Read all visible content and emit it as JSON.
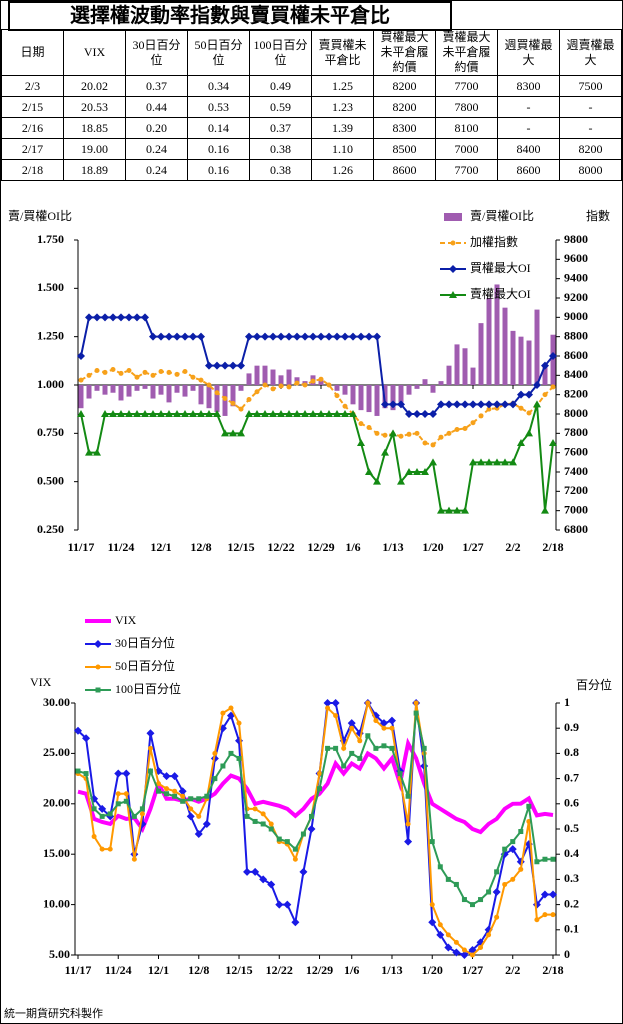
{
  "title": "選擇權波動率指數與賣買權未平倉比",
  "table": {
    "header": [
      "日期",
      "VIX",
      "30日百分位",
      "50日百分位",
      "100日百分位",
      "賣買權未平倉比",
      "買權最大未平倉履約價",
      "賣權最大未平倉履約價",
      "週買權最大",
      "週賣權最大"
    ],
    "rows": [
      [
        "2/3",
        "20.02",
        "0.37",
        "0.34",
        "0.49",
        "1.25",
        "8200",
        "7700",
        "8300",
        "7500"
      ],
      [
        "2/15",
        "20.53",
        "0.44",
        "0.53",
        "0.59",
        "1.23",
        "8200",
        "7800",
        "-",
        "-"
      ],
      [
        "2/16",
        "18.85",
        "0.20",
        "0.14",
        "0.37",
        "1.39",
        "8300",
        "8100",
        "-",
        "-"
      ],
      [
        "2/17",
        "19.00",
        "0.24",
        "0.16",
        "0.38",
        "1.10",
        "8500",
        "7000",
        "8400",
        "8200"
      ],
      [
        "2/18",
        "18.89",
        "0.24",
        "0.16",
        "0.38",
        "1.26",
        "8600",
        "7700",
        "8600",
        "8000"
      ]
    ]
  },
  "chart_data": [
    {
      "type": "combo",
      "y_label": "賣/買權OI比",
      "y2_label": "指數",
      "legend": "upper right",
      "grid": false,
      "x_axis_at": 1,
      "categories": [
        "11/17",
        null,
        null,
        null,
        null,
        "11/24",
        null,
        null,
        null,
        null,
        "12/1",
        null,
        null,
        null,
        null,
        "12/8",
        null,
        null,
        null,
        null,
        "12/15",
        null,
        null,
        null,
        null,
        "12/22",
        null,
        null,
        null,
        null,
        "12/29",
        null,
        null,
        null,
        "1/6",
        null,
        null,
        null,
        null,
        "1/13",
        null,
        null,
        null,
        null,
        "1/20",
        null,
        null,
        null,
        null,
        "1/27",
        null,
        null,
        null,
        null,
        "2/2",
        null,
        null,
        null,
        null,
        "2/18"
      ],
      "ylim": [
        0.25,
        1.75
      ],
      "yticks": [
        {
          "value": 0.25,
          "label": "0.250"
        },
        {
          "value": 0.5,
          "label": "0.500"
        },
        {
          "value": 0.75,
          "label": "0.750"
        },
        {
          "value": 1,
          "label": "1.000"
        },
        {
          "value": 1.25,
          "label": "1.250"
        },
        {
          "value": 1.5,
          "label": "1.500"
        },
        {
          "value": 1.75,
          "label": "1.750"
        }
      ],
      "y2lim": [
        6800,
        9800
      ],
      "y2ticks": [
        6800,
        7000,
        7200,
        7400,
        7600,
        7800,
        8000,
        8200,
        8400,
        8600,
        8800,
        9000,
        9200,
        9400,
        9600,
        9800
      ],
      "series": [
        {
          "name": "賣/買權OI比",
          "type": "bar",
          "axis": "y",
          "color": "#a05cb0",
          "values": [
            0.88,
            0.93,
            0.97,
            0.95,
            0.96,
            0.92,
            0.94,
            0.97,
            0.98,
            0.93,
            0.95,
            0.91,
            0.96,
            0.94,
            0.97,
            0.9,
            0.88,
            0.86,
            0.84,
            0.89,
            0.97,
            1.06,
            1.1,
            1.1,
            1.08,
            1.05,
            1.08,
            1.04,
            1.02,
            1.05,
            1.03,
            1,
            0.97,
            0.95,
            0.9,
            0.87,
            0.86,
            0.84,
            0.88,
            0.87,
            0.91,
            0.95,
            0.98,
            1.03,
            0.96,
            1.02,
            1.1,
            1.21,
            1.19,
            1.09,
            1.32,
            1.45,
            1.52,
            1.4,
            1.28,
            1.25,
            1.23,
            1.39,
            1.1,
            1.26
          ]
        },
        {
          "name": "加權指數",
          "type": "line",
          "axis": "y2",
          "color": "#f7a11a",
          "dash": true,
          "marker": "circle",
          "values": [
            8350,
            8400,
            8450,
            8430,
            8460,
            8420,
            8450,
            8380,
            8430,
            8400,
            8440,
            8430,
            8410,
            8440,
            8380,
            8350,
            8300,
            8220,
            8160,
            8110,
            8050,
            8150,
            8230,
            8300,
            8260,
            8290,
            8280,
            8320,
            8300,
            8340,
            8360,
            8300,
            8190,
            8080,
            8000,
            7900,
            7860,
            7800,
            7780,
            7790,
            7770,
            7790,
            7800,
            7700,
            7680,
            7760,
            7800,
            7840,
            7850,
            7910,
            7980,
            8050,
            8060,
            8100,
            8110,
            8060,
            8010,
            8090,
            8200,
            8280
          ]
        },
        {
          "name": "買權最大OI",
          "type": "line",
          "axis": "y2",
          "color": "#0b1fa8",
          "marker": "diamond",
          "values": [
            8600,
            9000,
            9000,
            9000,
            9000,
            9000,
            9000,
            9000,
            9000,
            8800,
            8800,
            8800,
            8800,
            8800,
            8800,
            8800,
            8500,
            8500,
            8500,
            8500,
            8500,
            8800,
            8800,
            8800,
            8800,
            8800,
            8800,
            8800,
            8800,
            8800,
            8800,
            8800,
            8800,
            8800,
            8800,
            8800,
            8800,
            8800,
            8100,
            8100,
            8100,
            8000,
            8000,
            8000,
            8000,
            8100,
            8100,
            8100,
            8100,
            8100,
            8100,
            8100,
            8100,
            8100,
            8100,
            8200,
            8200,
            8300,
            8500,
            8600
          ]
        },
        {
          "name": "賣權最大OI",
          "type": "line",
          "axis": "y2",
          "color": "#138a13",
          "marker": "triangle",
          "values": [
            8000,
            7600,
            7600,
            8000,
            8000,
            8000,
            8000,
            8000,
            8000,
            8000,
            8000,
            8000,
            8000,
            8000,
            8000,
            8000,
            8000,
            8000,
            7800,
            7800,
            7800,
            8000,
            8000,
            8000,
            8000,
            8000,
            8000,
            8000,
            8000,
            8000,
            8000,
            8000,
            8000,
            8000,
            8000,
            7700,
            7400,
            7300,
            7600,
            7800,
            7300,
            7400,
            7400,
            7400,
            7500,
            7000,
            7000,
            7000,
            7000,
            7500,
            7500,
            7500,
            7500,
            7500,
            7500,
            7700,
            7800,
            8100,
            7000,
            7700
          ]
        }
      ]
    },
    {
      "type": "line",
      "y_label": "VIX",
      "y2_label": "百分位",
      "legend": "upper left",
      "grid": false,
      "categories": [
        "11/17",
        null,
        null,
        null,
        null,
        "11/24",
        null,
        null,
        null,
        null,
        "12/1",
        null,
        null,
        null,
        null,
        "12/8",
        null,
        null,
        null,
        null,
        "12/15",
        null,
        null,
        null,
        null,
        "12/22",
        null,
        null,
        null,
        null,
        "12/29",
        null,
        null,
        null,
        "1/6",
        null,
        null,
        null,
        null,
        "1/13",
        null,
        null,
        null,
        null,
        "1/20",
        null,
        null,
        null,
        null,
        "1/27",
        null,
        null,
        null,
        null,
        "2/2",
        null,
        null,
        null,
        null,
        "2/18"
      ],
      "ylim": [
        5,
        30
      ],
      "yticks": [
        {
          "value": 5,
          "label": "5.00"
        },
        {
          "value": 10,
          "label": "10.00"
        },
        {
          "value": 15,
          "label": "15.00"
        },
        {
          "value": 20,
          "label": "20.00"
        },
        {
          "value": 25,
          "label": "25.00"
        },
        {
          "value": 30,
          "label": "30.00"
        }
      ],
      "y2lim": [
        0,
        1
      ],
      "y2ticks": [
        0,
        0.1,
        0.2,
        0.3,
        0.4,
        0.5,
        0.6,
        0.7,
        0.8,
        0.9,
        1
      ],
      "series": [
        {
          "name": "VIX",
          "axis": "y",
          "color": "#ff00ff",
          "width": 4,
          "marker": "none",
          "values": [
            21.2,
            21,
            18.5,
            18.2,
            18,
            18.8,
            18.5,
            18.6,
            17.5,
            19.5,
            22,
            20.5,
            20.5,
            20.3,
            20.5,
            20.2,
            20.5,
            21,
            22,
            22.8,
            22.5,
            21.5,
            20,
            20.2,
            20,
            19.8,
            19.5,
            18.8,
            19.5,
            20.5,
            21,
            22,
            24,
            23,
            24,
            23.5,
            25,
            24.5,
            23.5,
            24.5,
            22,
            26,
            24.5,
            22,
            20,
            19.5,
            19,
            18.5,
            18.2,
            17.5,
            17.2,
            18,
            18.5,
            19.5,
            20,
            20.02,
            20.53,
            18.85,
            19,
            18.89
          ]
        },
        {
          "name": "30日百分位",
          "axis": "y2",
          "color": "#1a1ae6",
          "marker": "diamond",
          "values": [
            0.89,
            0.86,
            0.62,
            0.58,
            0.55,
            0.72,
            0.72,
            0.4,
            0.52,
            0.88,
            0.73,
            0.71,
            0.71,
            0.65,
            0.55,
            0.48,
            0.52,
            0.78,
            0.9,
            0.95,
            0.85,
            0.33,
            0.33,
            0.3,
            0.28,
            0.2,
            0.2,
            0.13,
            0.33,
            0.5,
            0.72,
            1,
            1,
            0.85,
            0.92,
            0.88,
            1,
            0.95,
            0.92,
            0.93,
            0.73,
            0.45,
            1,
            0.75,
            0.13,
            0.08,
            0.03,
            0.01,
            0,
            0.02,
            0.05,
            0.1,
            0.25,
            0.4,
            0.42,
            0.37,
            0.44,
            0.2,
            0.24,
            0.24
          ]
        },
        {
          "name": "50日百分位",
          "axis": "y2",
          "color": "#ff9900",
          "marker": "circle",
          "values": [
            0.72,
            0.7,
            0.47,
            0.42,
            0.42,
            0.64,
            0.64,
            0.38,
            0.56,
            0.82,
            0.68,
            0.66,
            0.65,
            0.63,
            0.58,
            0.55,
            0.62,
            0.8,
            0.96,
            0.98,
            0.92,
            0.58,
            0.58,
            0.56,
            0.52,
            0.45,
            0.44,
            0.38,
            0.48,
            0.55,
            0.72,
            0.98,
            0.95,
            0.82,
            0.9,
            0.85,
            1,
            0.93,
            0.9,
            0.9,
            0.7,
            0.52,
            1,
            0.8,
            0.2,
            0.12,
            0.08,
            0.05,
            0.02,
            0,
            0.03,
            0.08,
            0.15,
            0.28,
            0.3,
            0.34,
            0.53,
            0.14,
            0.16,
            0.16
          ]
        },
        {
          "name": "100日百分位",
          "axis": "y2",
          "color": "#2e9b57",
          "marker": "square",
          "values": [
            0.73,
            0.72,
            0.58,
            0.55,
            0.56,
            0.6,
            0.61,
            0.55,
            0.58,
            0.73,
            0.65,
            0.64,
            0.63,
            0.61,
            0.62,
            0.62,
            0.63,
            0.7,
            0.75,
            0.8,
            0.78,
            0.55,
            0.53,
            0.52,
            0.5,
            0.46,
            0.45,
            0.42,
            0.48,
            0.55,
            0.66,
            0.82,
            0.82,
            0.75,
            0.8,
            0.78,
            0.87,
            0.82,
            0.83,
            0.82,
            0.72,
            0.63,
            0.96,
            0.82,
            0.45,
            0.35,
            0.3,
            0.28,
            0.22,
            0.2,
            0.22,
            0.25,
            0.33,
            0.42,
            0.45,
            0.49,
            0.59,
            0.37,
            0.38,
            0.38
          ]
        }
      ]
    }
  ],
  "footer": "統一期貨研究科製作"
}
